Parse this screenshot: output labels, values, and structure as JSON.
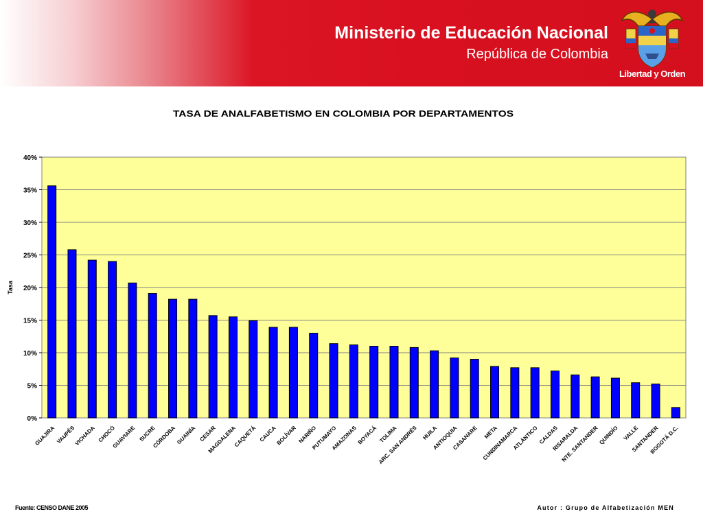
{
  "header": {
    "title": "Ministerio de Educación Nacional",
    "subtitle": "República de Colombia",
    "motto": "Libertad y Orden",
    "crest_icon": "colombia-coat-of-arms-icon",
    "banner_color": "#d8101f"
  },
  "chart_data": {
    "type": "bar",
    "title": "TASA DE ANALFABETISMO EN COLOMBIA POR DEPARTAMENTOS",
    "xlabel": "",
    "ylabel": "Tasa",
    "ylim": [
      0,
      0.4
    ],
    "yticks": [
      {
        "value": 0,
        "label": "0%"
      },
      {
        "value": 0.05,
        "label": "5%"
      },
      {
        "value": 0.1,
        "label": "10%"
      },
      {
        "value": 0.15,
        "label": "15%"
      },
      {
        "value": 0.2,
        "label": "20%"
      },
      {
        "value": 0.25,
        "label": "25%"
      },
      {
        "value": 0.3,
        "label": "30%"
      },
      {
        "value": 0.35,
        "label": "35%"
      },
      {
        "value": 0.4,
        "label": "40%"
      }
    ],
    "categories": [
      "GUAJIRA",
      "VAUPÉS",
      "VICHADA",
      "CHOCÓ",
      "GUAVIARE",
      "SUCRE",
      "CÓRDOBA",
      "GUAINÍA",
      "CESAR",
      "MAGDALENA",
      "CAQUETÁ",
      "CAUCA",
      "BOLÍVAR",
      "NARIÑO",
      "PUTUMAYO",
      "AMAZONAS",
      "BOYACÁ",
      "TOLIMA",
      "ARC. SAN ANDRÉS",
      "HUILA",
      "ANTIOQUIA",
      "CASANARE",
      "META",
      "CUNDINAMARCA",
      "ATLÁNTICO",
      "CALDAS",
      "RISARALDA",
      "NTE. SANTANDER",
      "QUINDÍO",
      "VALLE",
      "SANTANDER",
      "BOGOTÁ D.C."
    ],
    "values": [
      0.356,
      0.258,
      0.242,
      0.24,
      0.207,
      0.191,
      0.182,
      0.182,
      0.157,
      0.155,
      0.149,
      0.139,
      0.139,
      0.13,
      0.114,
      0.112,
      0.11,
      0.11,
      0.108,
      0.103,
      0.092,
      0.09,
      0.079,
      0.077,
      0.077,
      0.072,
      0.066,
      0.063,
      0.061,
      0.054,
      0.052,
      0.016
    ],
    "bar_color": "#0000ff",
    "plot_background": "#ffff99",
    "grid": true,
    "legend": "none"
  },
  "footer": {
    "source": "Fuente: CENSO DANE 2005",
    "author": "Autor : Grupo de Alfabetización MEN"
  }
}
